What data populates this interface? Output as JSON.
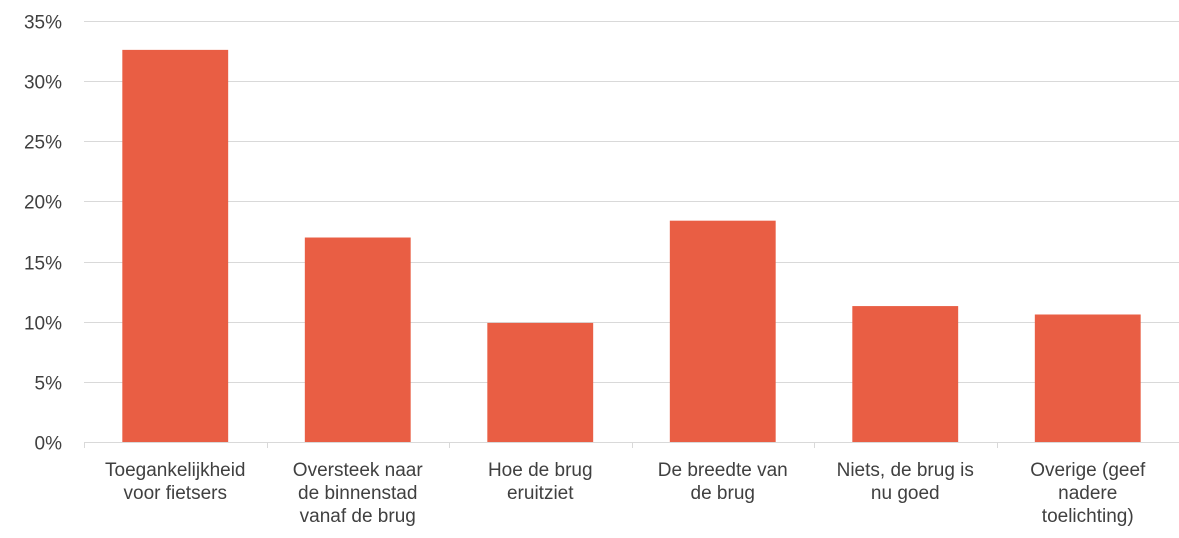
{
  "chart_data": {
    "type": "bar",
    "title": "",
    "xlabel": "",
    "ylabel": "",
    "categories": [
      "Toegankelijkheid voor fietsers",
      "Oversteek naar de binnenstad vanaf de brug",
      "Hoe de brug eruitziet",
      "De breedte van de brug",
      "Niets, de brug is nu goed",
      "Overige (geef nadere toelichting)"
    ],
    "category_lines": [
      [
        "Toegankelijkheid",
        "voor fietsers"
      ],
      [
        "Oversteek naar",
        "de binnenstad",
        "vanaf de brug"
      ],
      [
        "Hoe de brug",
        "eruitziet"
      ],
      [
        "De breedte van",
        "de brug"
      ],
      [
        "Niets, de brug is",
        "nu goed"
      ],
      [
        "Overige (geef",
        "nadere",
        "toelichting)"
      ]
    ],
    "values": [
      32.6,
      17.0,
      9.9,
      18.4,
      11.3,
      10.6
    ],
    "ylim": [
      0,
      35
    ],
    "yticks": [
      0,
      5,
      10,
      15,
      20,
      25,
      30,
      35
    ],
    "ytick_labels": [
      "0%",
      "5%",
      "10%",
      "15%",
      "20%",
      "25%",
      "30%",
      "35%"
    ],
    "grid": true,
    "legend": "none",
    "bar_color": "#E95E44",
    "grid_color": "#D9D9D9",
    "text_color": "#404040"
  }
}
